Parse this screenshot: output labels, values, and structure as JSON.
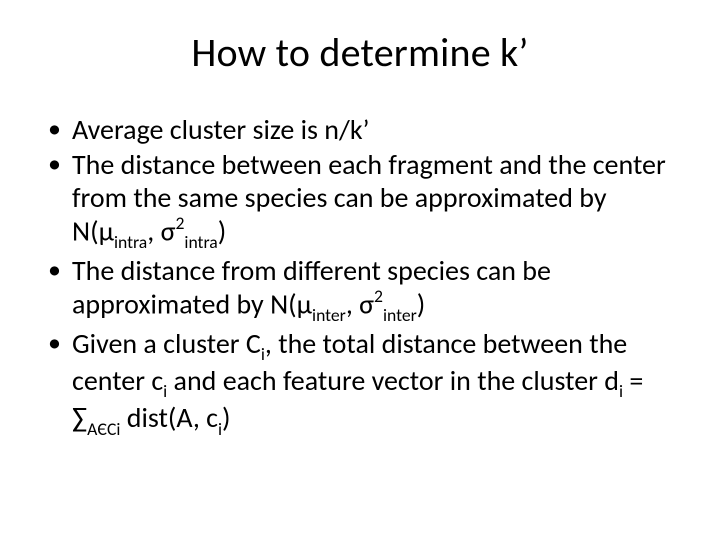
{
  "title": "How to determine k’",
  "bullets": [
    {
      "prefix": "Average cluster size is n/k’",
      "suffix": ""
    },
    {
      "prefix": "The distance between each fragment and the center from the same species can be approximated by N(μ",
      "sub1": "intra",
      "mid1": ", σ",
      "sup1": "2",
      "sub2": "intra",
      "suffix": ")"
    },
    {
      "prefix": "The distance from different species can be approximated by N(μ",
      "sub1": "inter",
      "mid1": ", σ",
      "sup1": "2",
      "sub2": "inter",
      "suffix": ")"
    },
    {
      "prefix": "Given a cluster C",
      "sub1": "i",
      "mid1": ", the total distance between the center c",
      "sub2": "i",
      "mid2": " and each feature vector in the cluster d",
      "sub3": "i",
      "mid3": " = ∑",
      "sub4": "AЄCi",
      "mid4": " dist(A, c",
      "sub5": "i",
      "suffix": ")"
    }
  ]
}
